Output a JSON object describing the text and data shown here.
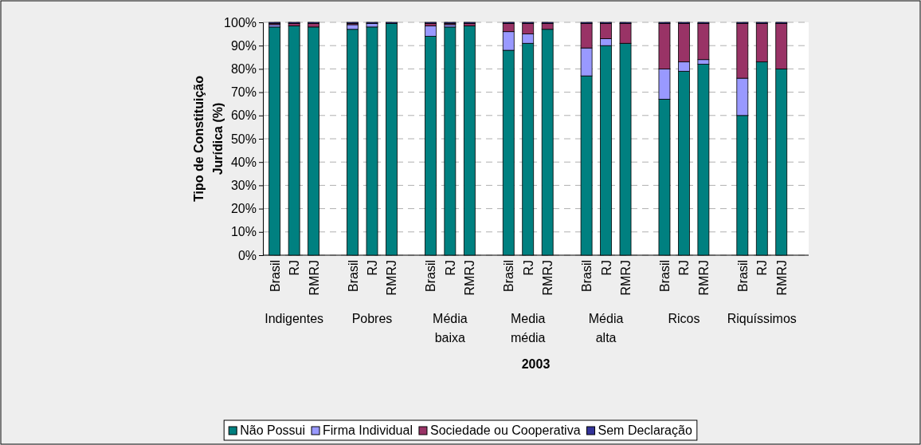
{
  "chart_data": {
    "type": "bar",
    "stacked": true,
    "xlabel": "2003",
    "ylabel": "Tipo de Constituição Jurídica (%)",
    "categories": [
      "Brasil",
      "RJ",
      "RMRJ",
      "Brasil",
      "RJ",
      "RMRJ",
      "Brasil",
      "RJ",
      "RMRJ",
      "Brasil",
      "RJ",
      "RMRJ",
      "Brasil",
      "RJ",
      "RMRJ",
      "Brasil",
      "RJ",
      "RMRJ",
      "Brasil",
      "RJ",
      "RMRJ"
    ],
    "annotations": [
      "Indigentes",
      "Pobres",
      "Média baixa",
      "Media média",
      "Média alta",
      "Ricos",
      "Riquíssimos"
    ],
    "series": [
      {
        "name": "Não Possui",
        "color": "#008080",
        "values": [
          98,
          98.5,
          98,
          97,
          98,
          99.5,
          94,
          98,
          98.5,
          88,
          91,
          97,
          77,
          90,
          91,
          67,
          79,
          82,
          60,
          83,
          80
        ]
      },
      {
        "name": "Firma Individual",
        "color": "#9999ff",
        "values": [
          1,
          0,
          0,
          2,
          1.5,
          0,
          4.5,
          1,
          0,
          8,
          4,
          0,
          12,
          3,
          0,
          13,
          4,
          2,
          16,
          0,
          0
        ]
      },
      {
        "name": "Sociedade ou Cooperativa",
        "color": "#993366",
        "values": [
          0.5,
          1,
          1.5,
          0.5,
          0,
          0,
          1,
          0.5,
          1,
          3.5,
          4.5,
          2.5,
          10.5,
          6.5,
          8.5,
          19.5,
          16.5,
          15.5,
          23.5,
          16.5,
          19.5
        ]
      },
      {
        "name": "Sem Declaração",
        "color": "#333399",
        "values": [
          0.5,
          0.5,
          0.5,
          0.5,
          0.5,
          0.5,
          0.5,
          0.5,
          0.5,
          0.5,
          0.5,
          0.5,
          0.5,
          0.5,
          0.5,
          0.5,
          0.5,
          0.5,
          0.5,
          0.5,
          0.5
        ]
      }
    ],
    "ylim": [
      0,
      100
    ],
    "yticks": [
      {
        "value": 0,
        "label": "0%"
      },
      {
        "value": 10,
        "label": "10%"
      },
      {
        "value": 20,
        "label": "20%"
      },
      {
        "value": 30,
        "label": "30%"
      },
      {
        "value": 40,
        "label": "40%"
      },
      {
        "value": 50,
        "label": "50%"
      },
      {
        "value": 60,
        "label": "60%"
      },
      {
        "value": 70,
        "label": "70%"
      },
      {
        "value": 80,
        "label": "80%"
      },
      {
        "value": 90,
        "label": "90%"
      },
      {
        "value": 100,
        "label": "100%"
      }
    ],
    "grid": "y",
    "legend": "bottom"
  }
}
